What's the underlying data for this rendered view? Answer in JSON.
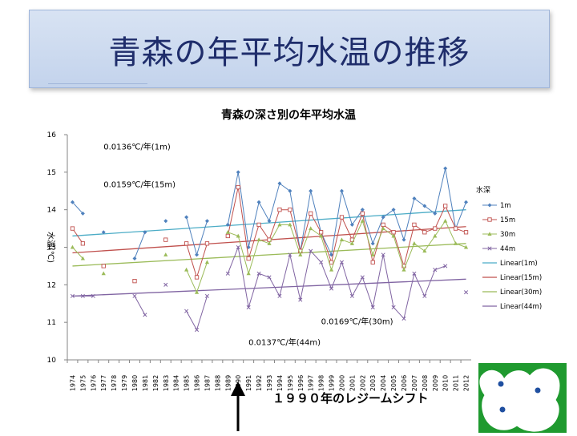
{
  "slide": {
    "title": "青森の年平均水温の推移",
    "arrow_label": "１９９０年のレジームシフト"
  },
  "chart_data": {
    "type": "line",
    "title": "青森の深さ別の年平均水温",
    "ylabel": "水温(℃)",
    "xlabel": "",
    "ylim": [
      10,
      16
    ],
    "yticks": [
      10,
      11,
      12,
      13,
      14,
      15,
      16
    ],
    "grid": false,
    "legend_title": "水深",
    "legend_position": "right",
    "categories": [
      "1974",
      "1975",
      "1976",
      "1977",
      "1978",
      "1979",
      "1980",
      "1981",
      "1982",
      "1983",
      "1984",
      "1985",
      "1986",
      "1987",
      "1988",
      "1989",
      "1990",
      "1991",
      "1992",
      "1993",
      "1994",
      "1995",
      "1996",
      "1997",
      "1998",
      "1999",
      "2000",
      "2001",
      "2002",
      "2003",
      "2004",
      "2005",
      "2006",
      "2007",
      "2008",
      "2009",
      "2010",
      "2011",
      "2012"
    ],
    "series": [
      {
        "name": "1m",
        "color": "#4f81bd",
        "marker": "diamond",
        "values": [
          14.2,
          13.9,
          null,
          13.4,
          null,
          null,
          12.7,
          13.4,
          null,
          13.7,
          null,
          13.8,
          12.8,
          13.7,
          null,
          13.6,
          15.0,
          13.0,
          14.2,
          13.7,
          14.7,
          14.5,
          12.9,
          14.5,
          13.4,
          12.8,
          14.5,
          13.6,
          14.0,
          13.1,
          13.8,
          14.0,
          13.2,
          14.3,
          14.1,
          13.9,
          15.1,
          13.5,
          14.2
        ]
      },
      {
        "name": "15m",
        "color": "#c0504d",
        "marker": "square",
        "values": [
          13.5,
          13.1,
          null,
          12.5,
          null,
          null,
          12.1,
          null,
          null,
          13.2,
          null,
          13.1,
          12.2,
          13.1,
          null,
          13.3,
          14.6,
          12.7,
          13.6,
          13.2,
          14.0,
          14.0,
          12.9,
          13.9,
          13.4,
          12.6,
          13.8,
          13.2,
          13.9,
          12.6,
          13.6,
          13.4,
          12.5,
          13.6,
          13.4,
          13.5,
          14.1,
          13.5,
          13.4
        ]
      },
      {
        "name": "30m",
        "color": "#9bbb59",
        "marker": "triangle",
        "values": [
          13.0,
          12.7,
          null,
          12.3,
          null,
          null,
          null,
          null,
          null,
          12.8,
          null,
          12.4,
          11.8,
          12.6,
          null,
          13.4,
          13.3,
          12.3,
          13.2,
          13.1,
          13.6,
          13.6,
          12.8,
          13.5,
          13.3,
          12.4,
          13.2,
          13.1,
          13.7,
          12.8,
          13.5,
          13.3,
          12.4,
          13.1,
          12.9,
          13.3,
          13.7,
          13.1,
          13.0
        ]
      },
      {
        "name": "44m",
        "color": "#8064a2",
        "marker": "x",
        "values": [
          11.7,
          11.7,
          11.7,
          null,
          null,
          null,
          11.7,
          11.2,
          null,
          12.0,
          null,
          11.3,
          10.8,
          11.7,
          null,
          12.3,
          13.0,
          11.4,
          12.3,
          12.2,
          11.7,
          12.8,
          11.6,
          12.9,
          12.6,
          11.9,
          12.6,
          11.7,
          12.2,
          11.4,
          12.8,
          11.4,
          11.1,
          12.3,
          11.7,
          12.4,
          12.5,
          null,
          11.8
        ]
      }
    ],
    "trend_lines": [
      {
        "name": "Linear(1m)",
        "color": "#4bacc6",
        "start": 13.3,
        "end": 14.0
      },
      {
        "name": "Linear(15m)",
        "color": "#c0504d",
        "start": 12.85,
        "end": 13.55
      },
      {
        "name": "Linear(30m)",
        "color": "#9bbb59",
        "start": 12.5,
        "end": 13.1
      },
      {
        "name": "Linear(44m)",
        "color": "#8064a2",
        "start": 11.7,
        "end": 12.15
      }
    ],
    "annotations": [
      {
        "text": "0.0136℃/年(1m)",
        "x": "1977",
        "y": 15.6
      },
      {
        "text": "0.0159℃/年(15m)",
        "x": "1977",
        "y": 14.6
      },
      {
        "text": "0.0169℃/年(30m)",
        "x": "1998",
        "y": 10.95
      },
      {
        "text": "0.0137℃/年(44m)",
        "x": "1991",
        "y": 10.4
      }
    ]
  }
}
